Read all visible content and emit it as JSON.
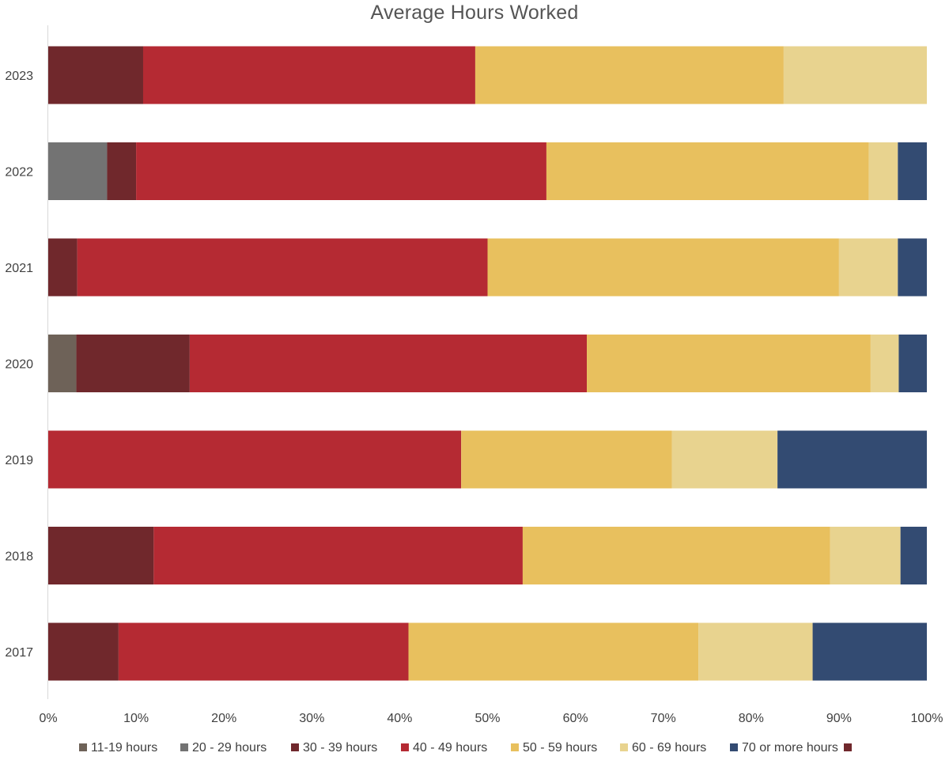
{
  "chart_data": {
    "type": "bar",
    "orientation": "horizontal",
    "stacked": "percent",
    "title": "Average Hours Worked",
    "xlabel": "",
    "ylabel": "",
    "xlim": [
      0,
      100
    ],
    "x_ticks": [
      "0%",
      "10%",
      "20%",
      "30%",
      "40%",
      "50%",
      "60%",
      "70%",
      "80%",
      "90%",
      "100%"
    ],
    "grid": false,
    "legend_position": "bottom",
    "categories": [
      "2023",
      "2022",
      "2021",
      "2020",
      "2019",
      "2018",
      "2017"
    ],
    "series": [
      {
        "name": "11-19 hours",
        "color": "#6e6258",
        "values": [
          0,
          0,
          0,
          3.2,
          0,
          0,
          0
        ]
      },
      {
        "name": "20 - 29 hours",
        "color": "#737373",
        "values": [
          0,
          6.7,
          0,
          0,
          0,
          0,
          0
        ]
      },
      {
        "name": "30 - 39 hours",
        "color": "#70282c",
        "values": [
          10.8,
          3.3,
          3.3,
          12.9,
          0,
          12,
          8
        ]
      },
      {
        "name": "40 - 49 hours",
        "color": "#b52a33",
        "values": [
          37.8,
          46.7,
          46.7,
          45.2,
          47,
          42,
          33
        ]
      },
      {
        "name": "50 - 59 hours",
        "color": "#e8c05e",
        "values": [
          35.1,
          36.7,
          40,
          32.3,
          24,
          35,
          33
        ]
      },
      {
        "name": "60 - 69 hours",
        "color": "#e8d38f",
        "values": [
          16.3,
          3.3,
          6.7,
          3.2,
          12,
          8,
          13
        ]
      },
      {
        "name": "70 or more hours",
        "color": "#334b72",
        "values": [
          0,
          3.3,
          3.3,
          3.2,
          17,
          3,
          13
        ]
      },
      {
        "name": "",
        "color": "#70282c",
        "values": [
          0,
          0,
          0,
          0,
          0,
          0,
          0
        ]
      }
    ]
  }
}
